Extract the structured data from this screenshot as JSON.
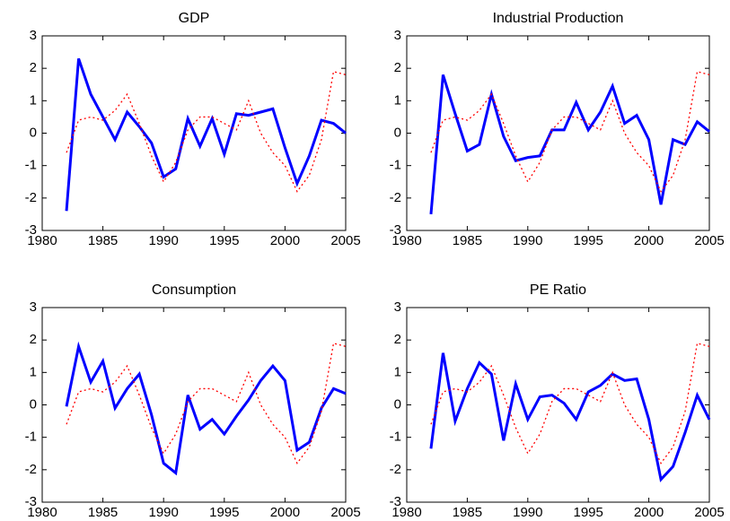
{
  "chart_data": [
    {
      "type": "line",
      "title": "GDP",
      "x": [
        1982,
        1983,
        1984,
        1985,
        1986,
        1987,
        1988,
        1989,
        1990,
        1991,
        1992,
        1993,
        1994,
        1995,
        1996,
        1997,
        1998,
        1999,
        2000,
        2001,
        2002,
        2003,
        2004,
        2005
      ],
      "series": [
        {
          "color": "#0000ff",
          "linestyle": "solid",
          "values": [
            -2.4,
            2.3,
            1.2,
            0.5,
            -0.2,
            0.65,
            0.2,
            -0.3,
            -1.35,
            -1.1,
            0.45,
            -0.4,
            0.45,
            -0.65,
            0.6,
            0.55,
            0.65,
            0.75,
            -0.45,
            -1.55,
            -0.7,
            0.4,
            0.3,
            0.0
          ]
        },
        {
          "color": "#ff0000",
          "linestyle": "dotted",
          "values": [
            -0.6,
            0.4,
            0.5,
            0.4,
            0.7,
            1.2,
            0.3,
            -0.7,
            -1.5,
            -0.9,
            0.1,
            0.5,
            0.5,
            0.3,
            0.1,
            1.0,
            0.0,
            -0.6,
            -1.0,
            -1.8,
            -1.3,
            -0.2,
            1.9,
            1.8
          ]
        }
      ],
      "xlim": [
        1980,
        2005
      ],
      "xticks": [
        1980,
        1985,
        1990,
        1995,
        2000,
        2005
      ],
      "ylim": [
        -3,
        3
      ],
      "yticks": [
        -3,
        -2,
        -1,
        0,
        1,
        2,
        3
      ]
    },
    {
      "type": "line",
      "title": "Industrial Production",
      "x": [
        1982,
        1983,
        1984,
        1985,
        1986,
        1987,
        1988,
        1989,
        1990,
        1991,
        1992,
        1993,
        1994,
        1995,
        1996,
        1997,
        1998,
        1999,
        2000,
        2001,
        2002,
        2003,
        2004,
        2005
      ],
      "series": [
        {
          "color": "#0000ff",
          "linestyle": "solid",
          "values": [
            -2.5,
            1.8,
            0.6,
            -0.55,
            -0.35,
            1.2,
            -0.1,
            -0.85,
            -0.75,
            -0.7,
            0.1,
            0.1,
            0.95,
            0.1,
            0.65,
            1.45,
            0.3,
            0.55,
            -0.2,
            -2.2,
            -0.2,
            -0.35,
            0.35,
            0.05
          ]
        },
        {
          "color": "#ff0000",
          "linestyle": "dotted",
          "values": [
            -0.6,
            0.4,
            0.5,
            0.4,
            0.7,
            1.2,
            0.3,
            -0.7,
            -1.5,
            -0.9,
            0.1,
            0.5,
            0.5,
            0.3,
            0.1,
            1.0,
            0.0,
            -0.6,
            -1.0,
            -1.8,
            -1.3,
            -0.2,
            1.9,
            1.8
          ]
        }
      ],
      "xlim": [
        1980,
        2005
      ],
      "xticks": [
        1980,
        1985,
        1990,
        1995,
        2000,
        2005
      ],
      "ylim": [
        -3,
        3
      ],
      "yticks": [
        -3,
        -2,
        -1,
        0,
        1,
        2,
        3
      ]
    },
    {
      "type": "line",
      "title": "Consumption",
      "x": [
        1982,
        1983,
        1984,
        1985,
        1986,
        1987,
        1988,
        1989,
        1990,
        1991,
        1992,
        1993,
        1994,
        1995,
        1996,
        1997,
        1998,
        1999,
        2000,
        2001,
        2002,
        2003,
        2004,
        2005
      ],
      "series": [
        {
          "color": "#0000ff",
          "linestyle": "solid",
          "values": [
            -0.05,
            1.8,
            0.7,
            1.35,
            -0.1,
            0.5,
            0.95,
            -0.3,
            -1.8,
            -2.1,
            0.3,
            -0.75,
            -0.45,
            -0.9,
            -0.35,
            0.15,
            0.75,
            1.2,
            0.75,
            -1.4,
            -1.15,
            -0.1,
            0.5,
            0.35
          ]
        },
        {
          "color": "#ff0000",
          "linestyle": "dotted",
          "values": [
            -0.6,
            0.4,
            0.5,
            0.4,
            0.7,
            1.2,
            0.3,
            -0.7,
            -1.5,
            -0.9,
            0.1,
            0.5,
            0.5,
            0.3,
            0.1,
            1.0,
            0.0,
            -0.6,
            -1.0,
            -1.8,
            -1.3,
            -0.2,
            1.9,
            1.8
          ]
        }
      ],
      "xlim": [
        1980,
        2005
      ],
      "xticks": [
        1980,
        1985,
        1990,
        1995,
        2000,
        2005
      ],
      "ylim": [
        -3,
        3
      ],
      "yticks": [
        -3,
        -2,
        -1,
        0,
        1,
        2,
        3
      ]
    },
    {
      "type": "line",
      "title": "PE Ratio",
      "x": [
        1982,
        1983,
        1984,
        1985,
        1986,
        1987,
        1988,
        1989,
        1990,
        1991,
        1992,
        1993,
        1994,
        1995,
        1996,
        1997,
        1998,
        1999,
        2000,
        2001,
        2002,
        2003,
        2004,
        2005
      ],
      "series": [
        {
          "color": "#0000ff",
          "linestyle": "solid",
          "values": [
            -1.35,
            1.6,
            -0.5,
            0.5,
            1.3,
            0.95,
            -1.1,
            0.65,
            -0.45,
            0.25,
            0.3,
            0.05,
            -0.45,
            0.4,
            0.6,
            0.95,
            0.75,
            0.8,
            -0.45,
            -2.3,
            -1.9,
            -0.85,
            0.3,
            -0.45
          ]
        },
        {
          "color": "#ff0000",
          "linestyle": "dotted",
          "values": [
            -0.6,
            0.4,
            0.5,
            0.4,
            0.7,
            1.2,
            0.3,
            -0.7,
            -1.5,
            -0.9,
            0.1,
            0.5,
            0.5,
            0.3,
            0.1,
            1.0,
            0.0,
            -0.6,
            -1.0,
            -1.8,
            -1.3,
            -0.2,
            1.9,
            1.8
          ]
        }
      ],
      "xlim": [
        1980,
        2005
      ],
      "xticks": [
        1980,
        1985,
        1990,
        1995,
        2000,
        2005
      ],
      "ylim": [
        -3,
        3
      ],
      "yticks": [
        -3,
        -2,
        -1,
        0,
        1,
        2,
        3
      ]
    }
  ]
}
